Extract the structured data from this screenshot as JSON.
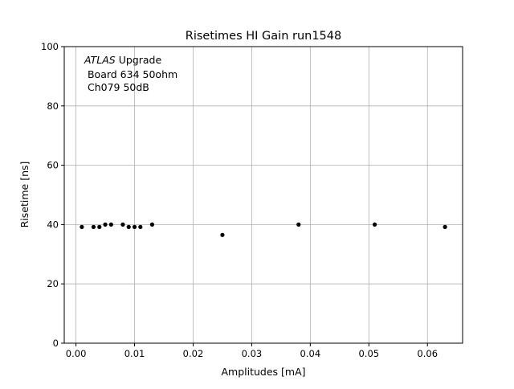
{
  "chart_data": {
    "type": "scatter",
    "title": "Risetimes HI Gain run1548",
    "xlabel": "Amplitudes [mA]",
    "ylabel": "Risetime [ns]",
    "xlim": [
      -0.002,
      0.066
    ],
    "ylim": [
      0,
      100
    ],
    "grid": true,
    "xticks": [
      0.0,
      0.01,
      0.02,
      0.03,
      0.04,
      0.05,
      0.06
    ],
    "xtick_labels": [
      "0.00",
      "0.01",
      "0.02",
      "0.03",
      "0.04",
      "0.05",
      "0.06"
    ],
    "yticks": [
      0,
      20,
      40,
      60,
      80,
      100
    ],
    "ytick_labels": [
      "0",
      "20",
      "40",
      "60",
      "80",
      "100"
    ],
    "annotation": {
      "italic": "ATLAS",
      "line1_rest": " Upgrade",
      "line2": " Board 634 50ohm",
      "line3": " Ch079 50dB"
    },
    "marker_color": "#000000",
    "grid_color": "#b0b0b0",
    "x": [
      0.001,
      0.003,
      0.004,
      0.005,
      0.006,
      0.008,
      0.009,
      0.01,
      0.011,
      0.013,
      0.025,
      0.038,
      0.051,
      0.063
    ],
    "y": [
      39.2,
      39.2,
      39.2,
      40.0,
      40.0,
      40.0,
      39.2,
      39.2,
      39.2,
      40.0,
      36.5,
      40.0,
      40.0,
      39.2
    ]
  }
}
